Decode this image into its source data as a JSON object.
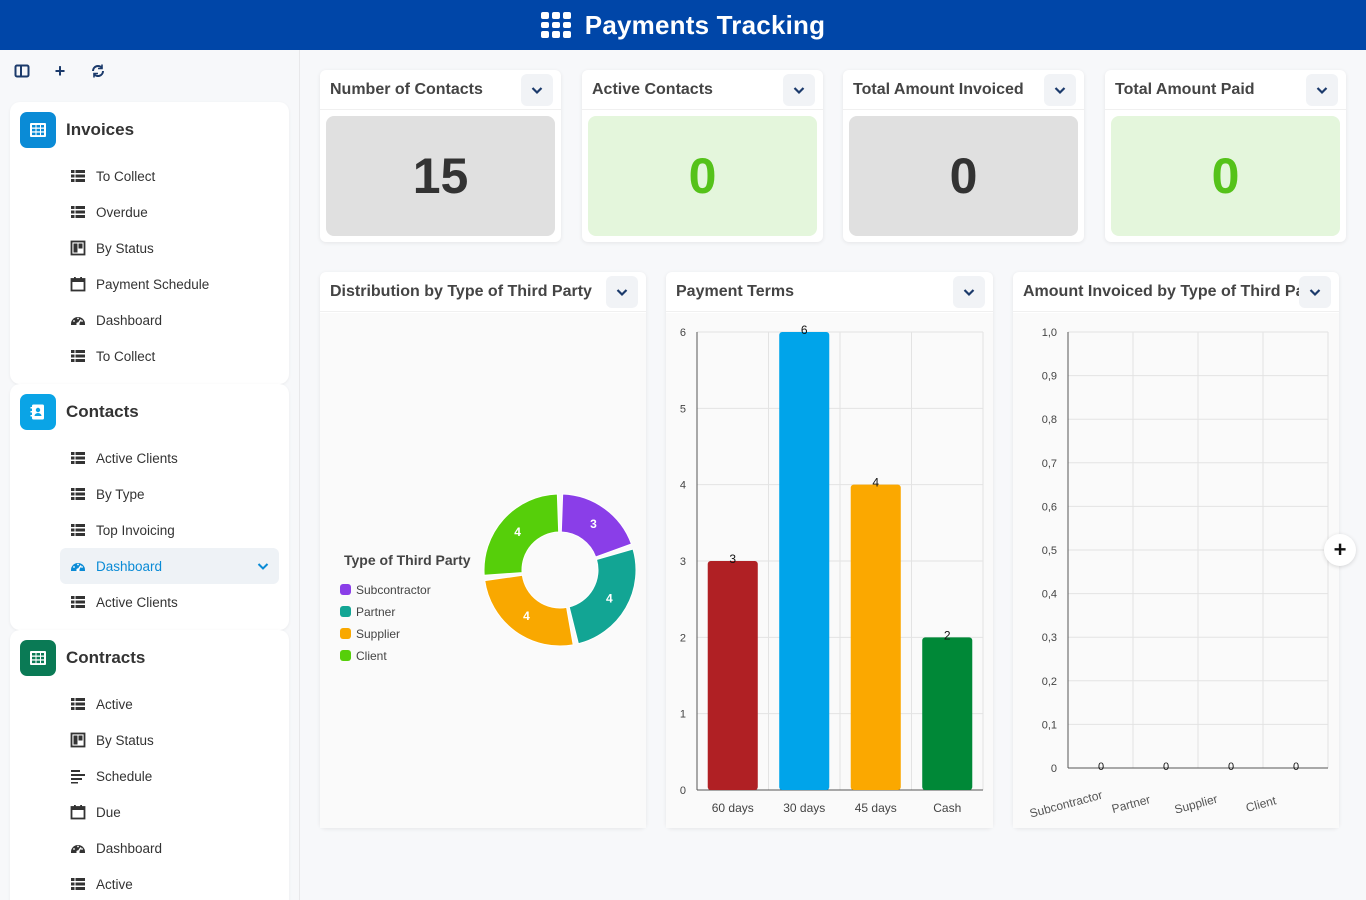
{
  "app": {
    "title": "Payments Tracking"
  },
  "sidebar": {
    "groups": [
      {
        "title": "Invoices",
        "color": "#0a8bd6",
        "items": [
          {
            "label": "To Collect",
            "icon": "table-icon"
          },
          {
            "label": "Overdue",
            "icon": "table-icon"
          },
          {
            "label": "By Status",
            "icon": "kanban-icon"
          },
          {
            "label": "Payment Schedule",
            "icon": "calendar-icon"
          },
          {
            "label": "Dashboard",
            "icon": "gauge-icon"
          },
          {
            "label": "To Collect",
            "icon": "table-icon"
          }
        ]
      },
      {
        "title": "Contacts",
        "color": "#0aa4e6",
        "items": [
          {
            "label": "Active Clients",
            "icon": "table-icon"
          },
          {
            "label": "By Type",
            "icon": "table-icon"
          },
          {
            "label": "Top Invoicing",
            "icon": "table-icon"
          },
          {
            "label": "Dashboard",
            "icon": "gauge-icon",
            "active": true
          },
          {
            "label": "Active Clients",
            "icon": "table-icon"
          }
        ]
      },
      {
        "title": "Contracts",
        "color": "#0a7a55",
        "items": [
          {
            "label": "Active",
            "icon": "table-icon"
          },
          {
            "label": "By Status",
            "icon": "kanban-icon"
          },
          {
            "label": "Schedule",
            "icon": "gantt-icon"
          },
          {
            "label": "Due",
            "icon": "calendar-icon"
          },
          {
            "label": "Dashboard",
            "icon": "gauge-icon"
          },
          {
            "label": "Active",
            "icon": "table-icon"
          }
        ]
      }
    ]
  },
  "kpis": [
    {
      "title": "Number of Contacts",
      "value": "15",
      "bg": "#e0e0e0",
      "color": "#333333"
    },
    {
      "title": "Active Contacts",
      "value": "0",
      "bg": "#e4f6dc",
      "color": "#55c21a"
    },
    {
      "title": "Total Amount Invoiced",
      "value": "0",
      "bg": "#e0e0e0",
      "color": "#333333"
    },
    {
      "title": "Total Amount Paid",
      "value": "0",
      "bg": "#e4f6dc",
      "color": "#55c21a"
    }
  ],
  "charts": {
    "distribution_title": "Distribution by Type of Third Party",
    "terms_title": "Payment Terms",
    "invoiced_title": "Amount Invoiced by Type of Third Pa"
  },
  "chart_data": [
    {
      "type": "pie",
      "legend_title": "Type of Third Party",
      "legend_position": "left",
      "categories": [
        "Subcontractor",
        "Partner",
        "Supplier",
        "Client"
      ],
      "values": [
        3,
        4,
        4,
        4
      ],
      "colors": [
        "#8a3ee8",
        "#12a594",
        "#f9a800",
        "#56cf0a"
      ]
    },
    {
      "type": "bar",
      "categories": [
        "60 days",
        "30 days",
        "45 days",
        "Cash"
      ],
      "values": [
        3,
        6,
        4,
        2
      ],
      "colors": [
        "#b02024",
        "#00a4ea",
        "#fba800",
        "#008837"
      ],
      "ylim": [
        0,
        6
      ],
      "yticks": [
        "0",
        "1",
        "2",
        "3",
        "4",
        "5",
        "6"
      ],
      "grid": true
    },
    {
      "type": "bar",
      "categories": [
        "Subcontractor",
        "Partner",
        "Supplier",
        "Client"
      ],
      "values": [
        0,
        0,
        0,
        0
      ],
      "value_labels": [
        "0",
        "0",
        "0",
        "0"
      ],
      "ylim": [
        0,
        1
      ],
      "yticks": [
        "0",
        "0,1",
        "0,2",
        "0,3",
        "0,4",
        "0,5",
        "0,6",
        "0,7",
        "0,8",
        "0,9",
        "1,0"
      ],
      "grid": true
    }
  ]
}
